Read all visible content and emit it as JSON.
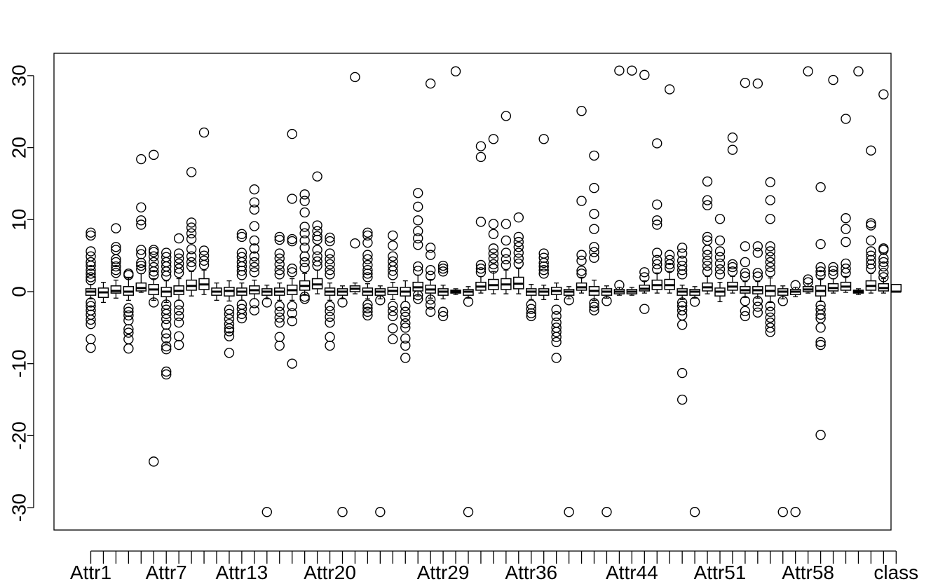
{
  "chart_data": {
    "type": "boxplot",
    "title": "",
    "xlabel": "",
    "ylabel": "",
    "ylim": [
      -33,
      33
    ],
    "yticks": [
      -30,
      -20,
      -10,
      0,
      10,
      20,
      30
    ],
    "ytick_labels": [
      "-30",
      "-20",
      "-10",
      "0",
      "10",
      "20",
      "30"
    ],
    "xtick_labels_shown": [
      {
        "index": 1,
        "label": "Attr1"
      },
      {
        "index": 7,
        "label": "Attr7"
      },
      {
        "index": 13,
        "label": "Attr13"
      },
      {
        "index": 20,
        "label": "Attr20"
      },
      {
        "index": 29,
        "label": "Attr29"
      },
      {
        "index": 36,
        "label": "Attr36"
      },
      {
        "index": 44,
        "label": "Attr44"
      },
      {
        "index": 51,
        "label": "Attr51"
      },
      {
        "index": 58,
        "label": "Attr58"
      },
      {
        "index": 65,
        "label": "class"
      }
    ],
    "series": [
      {
        "q1": -0.5,
        "median": 0,
        "q3": 0.4,
        "wlo": -1,
        "whi": 1,
        "outliers": [
          8.2,
          7.8,
          5.6,
          4.9,
          4.1,
          3.6,
          3.0,
          2.5,
          2.0,
          1.6,
          -1.5,
          -2.0,
          -2.6,
          -3.2,
          -3.9,
          -4.5,
          -6.6,
          -7.8
        ]
      },
      {
        "q1": -0.8,
        "median": -0.1,
        "q3": 0.5,
        "wlo": -1.5,
        "whi": 1.3,
        "outliers": []
      },
      {
        "q1": -0.2,
        "median": 0.1,
        "q3": 0.8,
        "wlo": -0.9,
        "whi": 1.6,
        "outliers": [
          8.8,
          6.2,
          5.8,
          4.5,
          4.1,
          3.5,
          3.0,
          2.6
        ]
      },
      {
        "q1": -0.5,
        "median": 0,
        "q3": 0.7,
        "wlo": -1.2,
        "whi": 2,
        "outliers": [
          2.5,
          2.3,
          -2.3,
          -2.8,
          -3.3,
          -4.0,
          -5.2,
          -5.7,
          -6.6,
          -7.9
        ]
      },
      {
        "q1": 0.1,
        "median": 0.5,
        "q3": 1.2,
        "wlo": -0.1,
        "whi": 2.5,
        "outliers": [
          18.4,
          11.7,
          9.9,
          9.3,
          5.8,
          5.2,
          4.0,
          3.6,
          3.1
        ]
      },
      {
        "q1": -0.4,
        "median": 0.3,
        "q3": 1.0,
        "wlo": -1.2,
        "whi": 1.8,
        "outliers": [
          19.0,
          5.8,
          5.5,
          4.9,
          4.1,
          3.4,
          2.8,
          2.3,
          -1.5,
          -23.6
        ]
      },
      {
        "q1": -0.7,
        "median": 0,
        "q3": 0.6,
        "wlo": -1.5,
        "whi": 1.5,
        "outliers": [
          5.4,
          4.8,
          4.1,
          3.5,
          2.8,
          2.2,
          -1.8,
          -2.5,
          -3.1,
          -3.8,
          -4.6,
          -5.8,
          -6.5,
          -7.6,
          -8.0,
          -11.1,
          -11.5
        ]
      },
      {
        "q1": -0.4,
        "median": 0.1,
        "q3": 0.8,
        "wlo": -1.2,
        "whi": 1.8,
        "outliers": [
          7.4,
          5.3,
          4.6,
          3.9,
          3.2,
          2.6,
          -1.8,
          -2.6,
          -3.4,
          -4.3,
          -6.2,
          -7.4
        ]
      },
      {
        "q1": 0.2,
        "median": 0.8,
        "q3": 1.6,
        "wlo": -0.6,
        "whi": 2.8,
        "outliers": [
          16.6,
          9.6,
          8.9,
          8.1,
          7.3,
          5.9,
          4.9,
          4.1,
          3.5
        ]
      },
      {
        "q1": 0.3,
        "median": 1.0,
        "q3": 1.8,
        "wlo": -0.4,
        "whi": 3.0,
        "outliers": [
          22.1,
          5.7,
          5.0,
          4.3,
          3.7
        ]
      },
      {
        "q1": -0.5,
        "median": 0,
        "q3": 0.5,
        "wlo": -1.2,
        "whi": 1.2,
        "outliers": []
      },
      {
        "q1": -0.6,
        "median": 0.1,
        "q3": 0.6,
        "wlo": -1.3,
        "whi": 1.5,
        "outliers": [
          -2.5,
          -3.1,
          -3.8,
          -4.5,
          -5.1,
          -5.5,
          -6.2,
          -8.5
        ]
      },
      {
        "q1": -0.5,
        "median": 0,
        "q3": 0.5,
        "wlo": -1.2,
        "whi": 1.2,
        "outliers": [
          8.0,
          7.6,
          5.4,
          4.8,
          4.1,
          3.5,
          2.9,
          2.3,
          -1.8,
          -2.4,
          -3.1,
          -3.7
        ]
      },
      {
        "q1": -0.3,
        "median": 0.2,
        "q3": 0.8,
        "wlo": -1.0,
        "whi": 1.6,
        "outliers": [
          14.2,
          12.4,
          11.4,
          9.1,
          7.1,
          6.0,
          4.9,
          4.1,
          3.4,
          2.7,
          -1.6,
          -2.6
        ]
      },
      {
        "q1": -0.5,
        "median": 0,
        "q3": 0.4,
        "wlo": -1.0,
        "whi": 0.9,
        "outliers": [
          -1.5,
          -30.6
        ]
      },
      {
        "q1": -0.5,
        "median": 0,
        "q3": 0.5,
        "wlo": -1.2,
        "whi": 1.2,
        "outliers": [
          7.6,
          7.2,
          5.3,
          4.6,
          3.8,
          3.0,
          2.4,
          -2.0,
          -2.8,
          -3.6,
          -4.3,
          -6.3,
          -7.5
        ]
      },
      {
        "q1": -0.4,
        "median": 0.2,
        "q3": 0.9,
        "wlo": -1.2,
        "whi": 1.8,
        "outliers": [
          21.9,
          12.9,
          7.3,
          7.0,
          3.2,
          2.7,
          -2.0,
          -3.0,
          -4.1,
          -10.0
        ]
      },
      {
        "q1": 0.2,
        "median": 0.8,
        "q3": 1.5,
        "wlo": -0.5,
        "whi": 2.5,
        "outliers": [
          13.5,
          12.6,
          11.0,
          9.0,
          8.1,
          7.1,
          6.1,
          4.9,
          4.1,
          3.3,
          -0.7,
          -1.0
        ]
      },
      {
        "q1": 0.4,
        "median": 1.0,
        "q3": 1.8,
        "wlo": -0.3,
        "whi": 3.0,
        "outliers": [
          16.0,
          9.2,
          8.4,
          7.7,
          7.2,
          5.8,
          4.9,
          4.2,
          3.6
        ]
      },
      {
        "q1": -0.5,
        "median": 0,
        "q3": 0.5,
        "wlo": -1.2,
        "whi": 1.2,
        "outliers": [
          7.5,
          7.0,
          5.3,
          4.5,
          3.8,
          3.0,
          2.4,
          -2.0,
          -2.7,
          -3.5,
          -4.3,
          -6.3,
          -7.5
        ]
      },
      {
        "q1": -0.5,
        "median": 0,
        "q3": 0.4,
        "wlo": -1.0,
        "whi": 0.8,
        "outliers": [
          -1.5,
          -30.6
        ]
      },
      {
        "q1": 0.0,
        "median": 0.4,
        "q3": 0.8,
        "wlo": -0.3,
        "whi": 1.2,
        "outliers": [
          29.8,
          6.7
        ]
      },
      {
        "q1": -0.5,
        "median": 0,
        "q3": 0.5,
        "wlo": -1.0,
        "whi": 1.1,
        "outliers": [
          8.2,
          7.8,
          6.8,
          5.1,
          4.5,
          3.7,
          3.0,
          2.5,
          2.0,
          -1.8,
          -2.3,
          -2.8,
          -3.3
        ]
      },
      {
        "q1": -0.5,
        "median": 0,
        "q3": 0.4,
        "wlo": -1.0,
        "whi": 0.8,
        "outliers": [
          -1.2,
          -30.6
        ]
      },
      {
        "q1": -0.4,
        "median": 0.1,
        "q3": 0.6,
        "wlo": -1.1,
        "whi": 1.3,
        "outliers": [
          7.8,
          6.4,
          4.9,
          4.2,
          3.5,
          2.9,
          2.3,
          -2.0,
          -2.7,
          -3.4,
          -5.1,
          -6.6
        ]
      },
      {
        "q1": -0.6,
        "median": 0,
        "q3": 0.6,
        "wlo": -1.4,
        "whi": 1.5,
        "outliers": [
          -2.0,
          -2.8,
          -3.5,
          -4.4,
          -5.0,
          -6.5,
          -7.5,
          -9.2
        ]
      },
      {
        "q1": 0.1,
        "median": 0.6,
        "q3": 1.3,
        "wlo": -0.6,
        "whi": 2.3,
        "outliers": [
          13.7,
          11.8,
          9.9,
          8.4,
          7.4,
          6.5,
          3.5,
          2.9,
          -0.5,
          -1.0
        ]
      },
      {
        "q1": -0.2,
        "median": 0.3,
        "q3": 0.9,
        "wlo": -0.9,
        "whi": 1.7,
        "outliers": [
          28.9,
          6.1,
          5.1,
          3.0,
          2.2,
          -1.1,
          -1.8,
          -2.8
        ]
      },
      {
        "q1": -0.5,
        "median": 0,
        "q3": 0.4,
        "wlo": -1.0,
        "whi": 0.9,
        "outliers": [
          3.6,
          3.2,
          2.8,
          -2.8,
          -3.4
        ]
      },
      {
        "q1": -0.2,
        "median": 0,
        "q3": 0.2,
        "wlo": -0.4,
        "whi": 0.4,
        "outliers": [
          30.6
        ]
      },
      {
        "q1": -0.5,
        "median": 0,
        "q3": 0.3,
        "wlo": -0.9,
        "whi": 0.7,
        "outliers": [
          -1.4,
          -30.6
        ]
      },
      {
        "q1": 0.2,
        "median": 0.7,
        "q3": 1.3,
        "wlo": -0.2,
        "whi": 2.1,
        "outliers": [
          20.2,
          18.7,
          9.7,
          3.7,
          3.2,
          2.7
        ]
      },
      {
        "q1": 0.3,
        "median": 0.9,
        "q3": 1.7,
        "wlo": -0.3,
        "whi": 2.8,
        "outliers": [
          21.2,
          9.4,
          8.0,
          6.0,
          5.3,
          4.6,
          3.8,
          3.2
        ]
      },
      {
        "q1": 0.3,
        "median": 1.0,
        "q3": 1.8,
        "wlo": -0.3,
        "whi": 3.0,
        "outliers": [
          24.4,
          9.4,
          7.1,
          5.4,
          4.5,
          3.7
        ]
      },
      {
        "q1": 0.4,
        "median": 1.1,
        "q3": 2.0,
        "wlo": -0.3,
        "whi": 3.2,
        "outliers": [
          10.3,
          7.6,
          6.9,
          6.2,
          5.4,
          4.6,
          3.9
        ]
      },
      {
        "q1": -0.5,
        "median": 0,
        "q3": 0.4,
        "wlo": -1.1,
        "whi": 1.0,
        "outliers": [
          -1.8,
          -2.4,
          -3.0,
          -3.4
        ]
      },
      {
        "q1": -0.5,
        "median": 0,
        "q3": 0.4,
        "wlo": -1.1,
        "whi": 0.9,
        "outliers": [
          21.2,
          5.3,
          4.7,
          4.0,
          3.5,
          3.0,
          2.5
        ]
      },
      {
        "q1": -0.4,
        "median": 0.1,
        "q3": 0.6,
        "wlo": -1.1,
        "whi": 1.2,
        "outliers": [
          -2.5,
          -3.4,
          -4.3,
          -5.0,
          -5.6,
          -6.3,
          -7.0,
          -9.2
        ]
      },
      {
        "q1": -0.5,
        "median": 0,
        "q3": 0.3,
        "wlo": -1.0,
        "whi": 0.7,
        "outliers": [
          -1.2,
          -30.6
        ]
      },
      {
        "q1": 0.2,
        "median": 0.6,
        "q3": 1.2,
        "wlo": -0.2,
        "whi": 2.0,
        "outliers": [
          25.1,
          12.6,
          5.1,
          4.3,
          2.9,
          2.5
        ]
      },
      {
        "q1": -0.5,
        "median": 0.1,
        "q3": 0.7,
        "wlo": -1.2,
        "whi": 1.6,
        "outliers": [
          18.9,
          14.4,
          10.8,
          8.7,
          6.2,
          5.5,
          4.7,
          -1.6,
          -2.1,
          -2.6
        ]
      },
      {
        "q1": -0.5,
        "median": 0,
        "q3": 0.4,
        "wlo": -0.9,
        "whi": 0.8,
        "outliers": [
          -1.3,
          -30.6
        ]
      },
      {
        "q1": -0.3,
        "median": 0,
        "q3": 0.3,
        "wlo": -0.5,
        "whi": 0.6,
        "outliers": [
          0.9,
          30.7
        ]
      },
      {
        "q1": -0.3,
        "median": 0,
        "q3": 0.3,
        "wlo": -0.5,
        "whi": 0.6,
        "outliers": [
          30.7
        ]
      },
      {
        "q1": 0.1,
        "median": 0.4,
        "q3": 0.9,
        "wlo": -0.2,
        "whi": 1.5,
        "outliers": [
          30.1,
          2.7,
          2.0,
          -2.4
        ]
      },
      {
        "q1": 0.3,
        "median": 0.9,
        "q3": 1.6,
        "wlo": -0.2,
        "whi": 2.6,
        "outliers": [
          20.6,
          12.1,
          9.9,
          9.3,
          5.4,
          4.4,
          3.8,
          3.1
        ]
      },
      {
        "q1": 0.3,
        "median": 0.9,
        "q3": 1.7,
        "wlo": -0.2,
        "whi": 2.8,
        "outliers": [
          28.1,
          5.1,
          4.4,
          3.8,
          3.3
        ]
      },
      {
        "q1": -0.5,
        "median": 0,
        "q3": 0.4,
        "wlo": -1.1,
        "whi": 0.9,
        "outliers": [
          6.1,
          5.3,
          4.3,
          3.6,
          3.0,
          2.4,
          -1.5,
          -2.0,
          -2.6,
          -3.3,
          -4.6,
          -11.3,
          -15.0
        ]
      },
      {
        "q1": -0.5,
        "median": 0,
        "q3": 0.3,
        "wlo": -0.9,
        "whi": 0.7,
        "outliers": [
          -1.4,
          -30.6
        ]
      },
      {
        "q1": 0.1,
        "median": 0.6,
        "q3": 1.2,
        "wlo": -0.3,
        "whi": 2.1,
        "outliers": [
          15.3,
          12.7,
          12.0,
          7.6,
          7.1,
          5.8,
          5.1,
          4.3,
          3.6,
          2.8
        ]
      },
      {
        "q1": -0.6,
        "median": 0,
        "q3": 0.5,
        "wlo": -1.4,
        "whi": 1.3,
        "outliers": [
          10.1,
          7.1,
          5.6,
          4.8,
          3.9,
          3.1,
          2.4
        ]
      },
      {
        "q1": 0.2,
        "median": 0.7,
        "q3": 1.3,
        "wlo": -0.2,
        "whi": 2.1,
        "outliers": [
          21.4,
          19.7,
          3.8,
          3.4,
          2.8
        ]
      },
      {
        "q1": -0.2,
        "median": 0.2,
        "q3": 0.7,
        "wlo": -0.8,
        "whi": 1.4,
        "outliers": [
          29.0,
          6.3,
          4.1,
          2.6,
          2.1,
          -1.3,
          -2.7,
          -3.4
        ]
      },
      {
        "q1": -0.3,
        "median": 0.2,
        "q3": 0.7,
        "wlo": -0.9,
        "whi": 1.4,
        "outliers": [
          28.9,
          6.3,
          5.4,
          2.6,
          2.1,
          -1.3,
          -2.1,
          -2.9
        ]
      },
      {
        "q1": -0.6,
        "median": 0.1,
        "q3": 0.8,
        "wlo": -1.5,
        "whi": 1.9,
        "outliers": [
          15.2,
          12.7,
          10.1,
          6.3,
          5.6,
          4.8,
          4.1,
          3.4,
          2.7,
          -2.0,
          -2.8,
          -3.6,
          -4.3,
          -5.0,
          -5.6
        ]
      },
      {
        "q1": -0.5,
        "median": 0,
        "q3": 0.4,
        "wlo": -1.0,
        "whi": 0.8,
        "outliers": [
          -1.3,
          -30.6
        ]
      },
      {
        "q1": -0.4,
        "median": 0,
        "q3": 0.3,
        "wlo": -0.7,
        "whi": 0.6,
        "outliers": [
          0.9,
          -30.6
        ]
      },
      {
        "q1": 0.0,
        "median": 0.3,
        "q3": 0.7,
        "wlo": -0.2,
        "whi": 1.1,
        "outliers": [
          30.6,
          1.3,
          1.7
        ]
      },
      {
        "q1": -0.6,
        "median": 0.1,
        "q3": 0.8,
        "wlo": -1.4,
        "whi": 1.8,
        "outliers": [
          14.5,
          6.6,
          3.4,
          2.8,
          2.3,
          -1.9,
          -2.5,
          -3.2,
          -3.7,
          -5.0,
          -7.0,
          -7.4,
          -19.9
        ]
      },
      {
        "q1": 0.1,
        "median": 0.5,
        "q3": 1.1,
        "wlo": -0.2,
        "whi": 1.8,
        "outliers": [
          29.4,
          3.4,
          2.9,
          2.4
        ]
      },
      {
        "q1": 0.2,
        "median": 0.7,
        "q3": 1.3,
        "wlo": -0.1,
        "whi": 2.1,
        "outliers": [
          24.0,
          10.2,
          8.7,
          6.9,
          3.9,
          3.2,
          2.6
        ]
      },
      {
        "q1": -0.2,
        "median": 0,
        "q3": 0.2,
        "wlo": -0.4,
        "whi": 0.4,
        "outliers": [
          30.6
        ]
      },
      {
        "q1": 0.2,
        "median": 0.8,
        "q3": 1.5,
        "wlo": -0.2,
        "whi": 2.5,
        "outliers": [
          19.6,
          9.5,
          9.2,
          7.1,
          5.6,
          5.0,
          4.4,
          3.8,
          3.2
        ]
      },
      {
        "q1": 0.1,
        "median": 0.5,
        "q3": 1.1,
        "wlo": -0.2,
        "whi": 1.8,
        "outliers": [
          27.4,
          6.0,
          5.8,
          4.6,
          4.1,
          3.5,
          2.6,
          2.0
        ]
      },
      {
        "q1": 0.0,
        "median": 0,
        "q3": 1.0,
        "wlo": 0.0,
        "whi": 1.0,
        "outliers": []
      }
    ]
  }
}
